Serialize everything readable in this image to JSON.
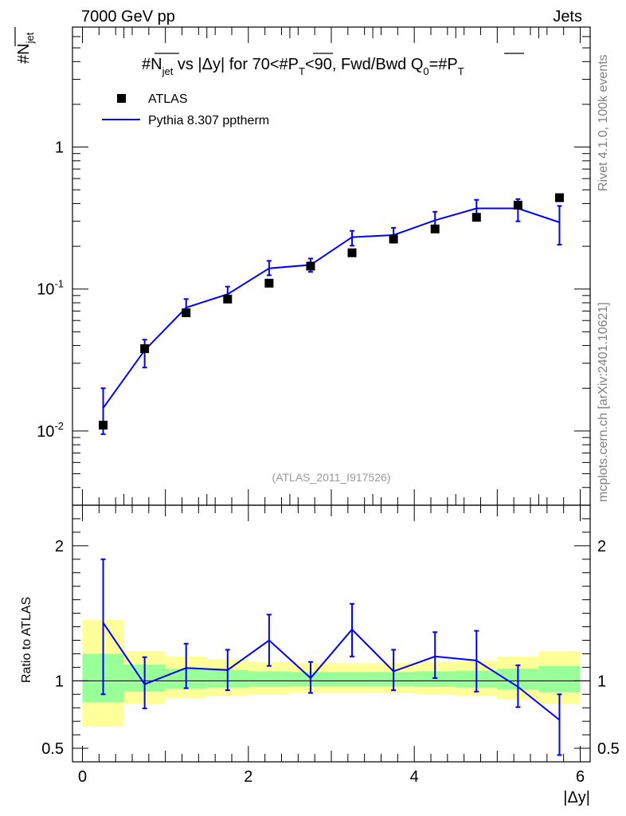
{
  "header": {
    "left": "7000 GeV pp",
    "right": "Jets"
  },
  "side_labels": {
    "rivet": "Rivet 4.1.0,  100k events",
    "mcplots": "mcplots.cern.ch [arXiv:2401.10621]"
  },
  "chart_data": [
    {
      "type": "scatter",
      "title": "#N_jet vs |Δy| for 70<#P_T<90, Fwd/Bwd Q_0=#P_T",
      "ylabel": "#N_jet",
      "yscale": "log",
      "ylim": [
        0.003,
        7
      ],
      "xlim": [
        -0.12,
        6.12
      ],
      "watermark": "(ATLAS_2011_I917526)",
      "ytick_labels": [
        "10^-2",
        "10^-1",
        "1"
      ],
      "legend": [
        "ATLAS",
        "Pythia 8.307 pptherm"
      ],
      "x": [
        0.25,
        0.75,
        1.25,
        1.75,
        2.25,
        2.75,
        3.25,
        3.75,
        4.25,
        4.75,
        5.25,
        5.75
      ],
      "series": [
        {
          "name": "ATLAS",
          "values": [
            0.011,
            0.038,
            0.068,
            0.085,
            0.11,
            0.145,
            0.18,
            0.225,
            0.265,
            0.32,
            0.39,
            0.44
          ]
        },
        {
          "name": "Pythia 8.307 pptherm",
          "values": [
            0.0145,
            0.037,
            0.074,
            0.092,
            0.14,
            0.148,
            0.232,
            0.24,
            0.305,
            0.37,
            0.37,
            0.295
          ],
          "err_low": [
            0.005,
            0.009,
            0.008,
            0.01,
            0.015,
            0.016,
            0.03,
            0.028,
            0.04,
            0.05,
            0.07,
            0.09
          ],
          "err_high": [
            0.0055,
            0.007,
            0.011,
            0.012,
            0.018,
            0.016,
            0.025,
            0.03,
            0.045,
            0.055,
            0.06,
            0.09
          ]
        }
      ]
    },
    {
      "type": "line",
      "ylabel": "Ratio to ATLAS",
      "xlabel": "|Δy|",
      "ylim": [
        0.4,
        2.3
      ],
      "xlim": [
        -0.12,
        6.12
      ],
      "ytick_labels": [
        "0.5",
        "1",
        "2"
      ],
      "xtick_labels": [
        "0",
        "2",
        "4",
        "6"
      ],
      "bands": {
        "bin_edges": [
          0,
          0.5,
          1.0,
          1.5,
          2.0,
          2.5,
          3.0,
          3.5,
          4.0,
          4.5,
          5.0,
          5.5,
          6.0
        ],
        "yellow_low": [
          0.66,
          0.83,
          0.87,
          0.89,
          0.9,
          0.91,
          0.91,
          0.91,
          0.9,
          0.89,
          0.86,
          0.83
        ],
        "yellow_high": [
          1.45,
          1.22,
          1.18,
          1.16,
          1.14,
          1.13,
          1.13,
          1.13,
          1.14,
          1.15,
          1.18,
          1.22
        ],
        "green_low": [
          0.84,
          0.92,
          0.94,
          0.95,
          0.955,
          0.96,
          0.96,
          0.96,
          0.955,
          0.95,
          0.935,
          0.915
        ],
        "green_high": [
          1.2,
          1.12,
          1.09,
          1.08,
          1.07,
          1.065,
          1.065,
          1.065,
          1.07,
          1.075,
          1.09,
          1.11
        ]
      },
      "series": [
        {
          "name": "Pythia 8.307 pptherm",
          "values": [
            1.43,
            0.975,
            1.095,
            1.08,
            1.3,
            1.02,
            1.38,
            1.07,
            1.18,
            1.15,
            0.955,
            0.71
          ],
          "err_low": [
            0.53,
            0.18,
            0.15,
            0.15,
            0.19,
            0.11,
            0.2,
            0.14,
            0.16,
            0.23,
            0.15,
            0.26
          ],
          "err_high": [
            0.47,
            0.2,
            0.18,
            0.15,
            0.19,
            0.12,
            0.19,
            0.16,
            0.18,
            0.22,
            0.16,
            0.19
          ]
        }
      ]
    }
  ]
}
